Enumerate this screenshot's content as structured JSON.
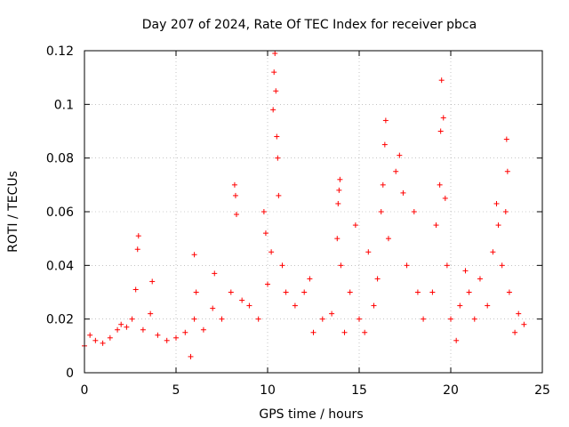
{
  "chart_data": {
    "type": "scatter",
    "title": "Day 207 of 2024, Rate Of TEC Index for receiver pbca",
    "xlabel": "GPS time / hours",
    "ylabel": "ROTI / TECUs",
    "xlim": [
      0,
      25
    ],
    "ylim": [
      0,
      0.12
    ],
    "x_ticks": [
      0,
      5,
      10,
      15,
      20,
      25
    ],
    "y_ticks": [
      0,
      0.02,
      0.04,
      0.06,
      0.08,
      0.1,
      0.12
    ],
    "x_tick_labels": [
      "0",
      "5",
      "10",
      "15",
      "20",
      "25"
    ],
    "y_tick_labels": [
      "0",
      "0.02",
      "0.04",
      "0.06",
      "0.08",
      "0.1",
      "0.12"
    ],
    "grid": true,
    "marker": "+",
    "color": "#ff0000",
    "series": [
      {
        "points": [
          [
            0.0,
            0.01
          ],
          [
            0.3,
            0.014
          ],
          [
            0.6,
            0.012
          ],
          [
            1.0,
            0.011
          ],
          [
            1.4,
            0.013
          ],
          [
            1.8,
            0.016
          ],
          [
            2.0,
            0.018
          ],
          [
            2.3,
            0.017
          ],
          [
            2.6,
            0.02
          ],
          [
            2.8,
            0.031
          ],
          [
            2.9,
            0.046
          ],
          [
            2.95,
            0.051
          ],
          [
            3.2,
            0.016
          ],
          [
            3.6,
            0.022
          ],
          [
            3.7,
            0.034
          ],
          [
            4.0,
            0.014
          ],
          [
            4.5,
            0.012
          ],
          [
            5.0,
            0.013
          ],
          [
            5.5,
            0.015
          ],
          [
            5.8,
            0.006
          ],
          [
            6.0,
            0.02
          ],
          [
            6.0,
            0.044
          ],
          [
            6.1,
            0.03
          ],
          [
            6.5,
            0.016
          ],
          [
            7.0,
            0.024
          ],
          [
            7.1,
            0.037
          ],
          [
            7.5,
            0.02
          ],
          [
            8.0,
            0.03
          ],
          [
            8.2,
            0.07
          ],
          [
            8.25,
            0.066
          ],
          [
            8.3,
            0.059
          ],
          [
            8.6,
            0.027
          ],
          [
            9.0,
            0.025
          ],
          [
            9.5,
            0.02
          ],
          [
            9.8,
            0.06
          ],
          [
            9.9,
            0.052
          ],
          [
            10.0,
            0.033
          ],
          [
            10.2,
            0.045
          ],
          [
            10.3,
            0.098
          ],
          [
            10.35,
            0.112
          ],
          [
            10.4,
            0.119
          ],
          [
            10.45,
            0.105
          ],
          [
            10.5,
            0.088
          ],
          [
            10.55,
            0.08
          ],
          [
            10.6,
            0.066
          ],
          [
            10.8,
            0.04
          ],
          [
            11.0,
            0.03
          ],
          [
            11.5,
            0.025
          ],
          [
            12.0,
            0.03
          ],
          [
            12.3,
            0.035
          ],
          [
            12.5,
            0.015
          ],
          [
            13.0,
            0.02
          ],
          [
            13.5,
            0.022
          ],
          [
            13.8,
            0.05
          ],
          [
            13.85,
            0.063
          ],
          [
            13.9,
            0.068
          ],
          [
            13.95,
            0.072
          ],
          [
            14.0,
            0.04
          ],
          [
            14.2,
            0.015
          ],
          [
            14.5,
            0.03
          ],
          [
            14.8,
            0.055
          ],
          [
            15.0,
            0.02
          ],
          [
            15.3,
            0.015
          ],
          [
            15.5,
            0.045
          ],
          [
            15.8,
            0.025
          ],
          [
            16.0,
            0.035
          ],
          [
            16.2,
            0.06
          ],
          [
            16.3,
            0.07
          ],
          [
            16.4,
            0.085
          ],
          [
            16.45,
            0.094
          ],
          [
            16.6,
            0.05
          ],
          [
            17.0,
            0.075
          ],
          [
            17.2,
            0.081
          ],
          [
            17.4,
            0.067
          ],
          [
            17.6,
            0.04
          ],
          [
            18.0,
            0.06
          ],
          [
            18.2,
            0.03
          ],
          [
            18.5,
            0.02
          ],
          [
            19.0,
            0.03
          ],
          [
            19.2,
            0.055
          ],
          [
            19.4,
            0.07
          ],
          [
            19.45,
            0.09
          ],
          [
            19.5,
            0.109
          ],
          [
            19.6,
            0.095
          ],
          [
            19.7,
            0.065
          ],
          [
            19.8,
            0.04
          ],
          [
            20.0,
            0.02
          ],
          [
            20.3,
            0.012
          ],
          [
            20.5,
            0.025
          ],
          [
            20.8,
            0.038
          ],
          [
            21.0,
            0.03
          ],
          [
            21.3,
            0.02
          ],
          [
            21.6,
            0.035
          ],
          [
            22.0,
            0.025
          ],
          [
            22.3,
            0.045
          ],
          [
            22.5,
            0.063
          ],
          [
            22.6,
            0.055
          ],
          [
            22.8,
            0.04
          ],
          [
            23.0,
            0.06
          ],
          [
            23.05,
            0.087
          ],
          [
            23.1,
            0.075
          ],
          [
            23.2,
            0.03
          ],
          [
            23.5,
            0.015
          ],
          [
            23.7,
            0.022
          ],
          [
            24.0,
            0.018
          ]
        ]
      }
    ]
  }
}
